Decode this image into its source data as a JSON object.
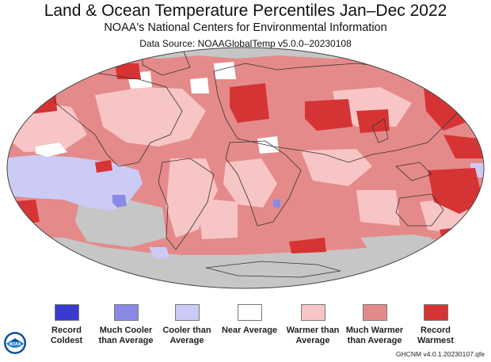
{
  "header": {
    "title": "Land & Ocean Temperature Percentiles Jan–Dec 2022",
    "subtitle": "NOAA's National Centers for Environmental Information",
    "source": "Data Source: NOAAGlobalTemp v5.0.0–20230108"
  },
  "colors": {
    "record_coldest": "#3a3ad1",
    "much_cooler": "#8a8ae6",
    "cooler": "#cccbf5",
    "near": "#ffffff",
    "warmer": "#f7c5c5",
    "much_warmer": "#e58a8a",
    "record_warmest": "#d63434",
    "no_data": "#c6c6c6"
  },
  "legend": [
    {
      "label": "Record Coldest",
      "color": "#3a3ad1"
    },
    {
      "label": "Much Cooler than Average",
      "color": "#8a8ae6"
    },
    {
      "label": "Cooler than Average",
      "color": "#cccbf5"
    },
    {
      "label": "Near Average",
      "color": "#ffffff"
    },
    {
      "label": "Warmer than Average",
      "color": "#f7c5c5"
    },
    {
      "label": "Much Warmer than Average",
      "color": "#e58a8a"
    },
    {
      "label": "Record Warmest",
      "color": "#d63434"
    }
  ],
  "footer": {
    "version": "GHCNM v4.0.1.20230107.qfe",
    "logo_text": "NOAA"
  }
}
